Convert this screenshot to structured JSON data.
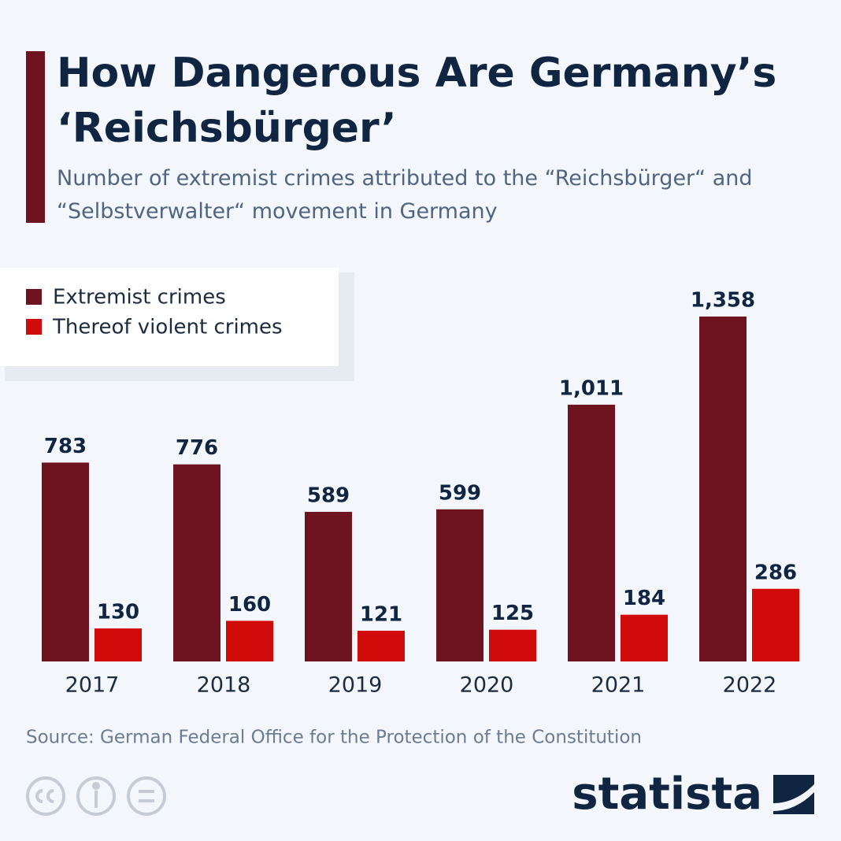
{
  "chart_data": {
    "type": "bar",
    "title": "How Dangerous Are Germany’s ‘Reichsbürger’",
    "subtitle": "Number of extremist crimes attributed to the “Reichsbürger“ and “Selbstverwalter“ movement in Germany",
    "categories": [
      "2017",
      "2018",
      "2019",
      "2020",
      "2021",
      "2022"
    ],
    "series": [
      {
        "name": "Extremist crimes",
        "color": "#6d1420",
        "values": [
          783,
          776,
          589,
          599,
          1011,
          1358
        ],
        "value_labels": [
          "783",
          "776",
          "589",
          "599",
          "1,011",
          "1,358"
        ]
      },
      {
        "name": "Thereof violent crimes",
        "color": "#d10a0a",
        "values": [
          130,
          160,
          121,
          125,
          184,
          286
        ],
        "value_labels": [
          "130",
          "160",
          "121",
          "125",
          "184",
          "286"
        ]
      }
    ],
    "legend": "top-left",
    "source": "Source: German Federal Office for the Protection of the Constitution"
  },
  "footer": {
    "brand": "statista"
  }
}
